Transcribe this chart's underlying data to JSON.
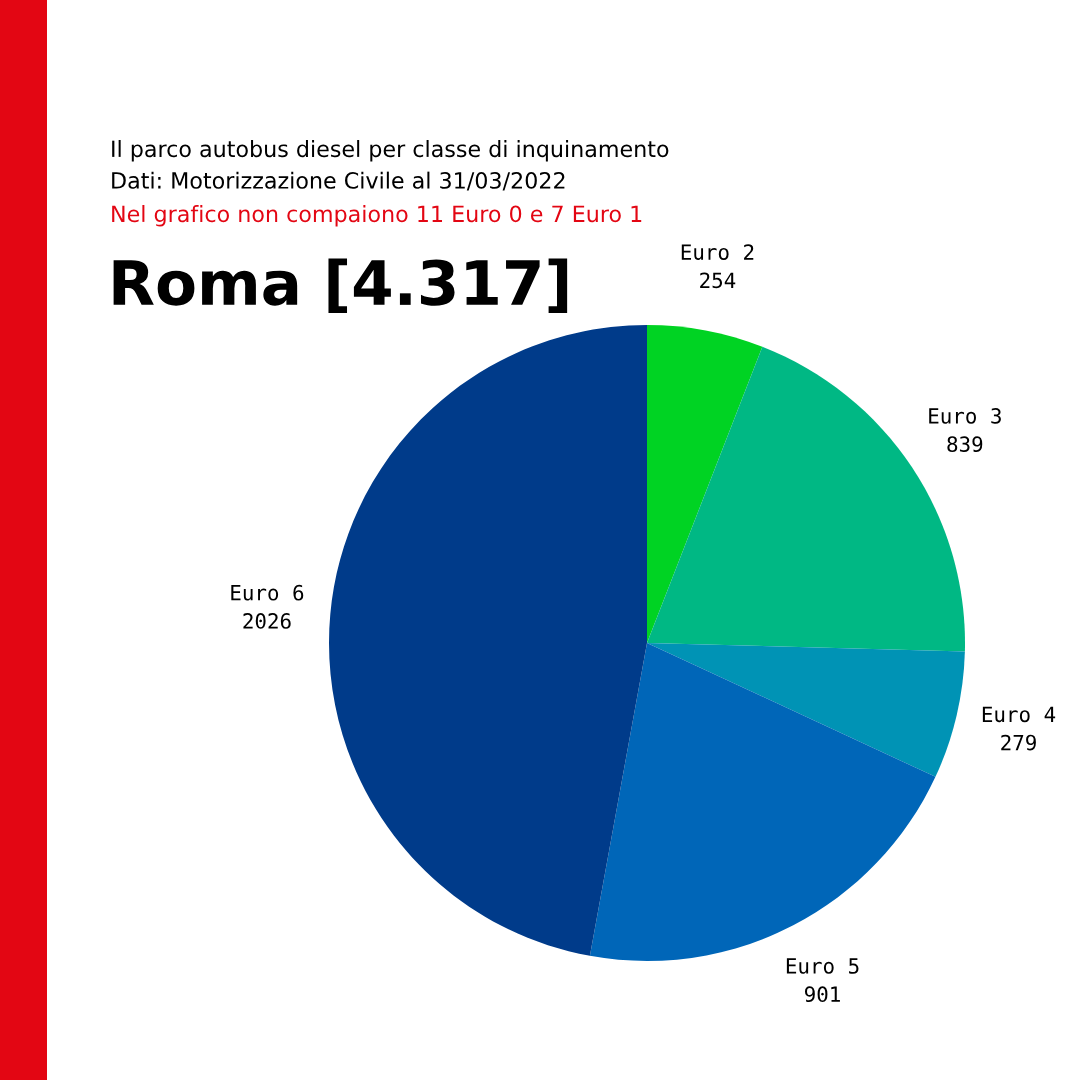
{
  "chart_data": {
    "type": "pie",
    "title": "Roma [4.317]",
    "subtitle": "Il parco autobus diesel per classe di inquinamento\nDati: Motorizzazione Civile al 31/03/2022",
    "annotations": [
      "Nel grafico non compaiono 11 Euro 0 e 7 Euro 1"
    ],
    "categories": [
      "Euro 2",
      "Euro 3",
      "Euro 4",
      "Euro 5",
      "Euro 6"
    ],
    "values": [
      254,
      839,
      279,
      901,
      2026
    ],
    "colors": [
      "#00d323",
      "#00b884",
      "#0093b5",
      "#0066b8",
      "#003b8a"
    ],
    "data_labels": true
  }
}
